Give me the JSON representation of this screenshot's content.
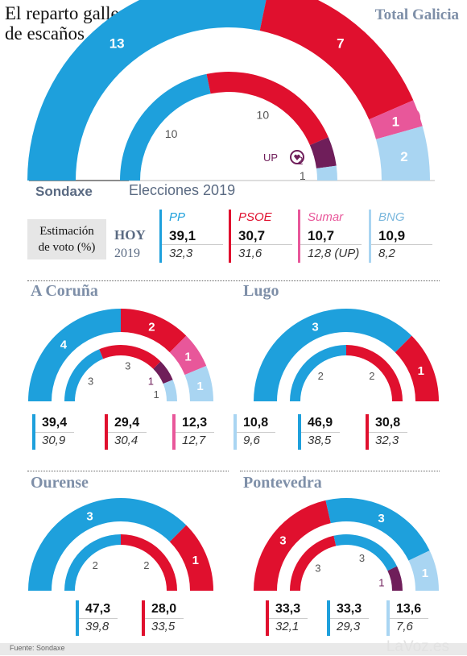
{
  "header": {
    "title_line1": "El reparto gallego",
    "title_line2": "de escaños",
    "subtitle": "Total Galicia"
  },
  "labels": {
    "sondaxe": "Sondaxe",
    "elecciones": "Elecciones 2019",
    "estimacion_l1": "Estimación",
    "estimacion_l2": "de voto (%)",
    "hoy": "HOY",
    "y2019": "2019",
    "footer": "Fuente: Sondaxe",
    "watermark": "LaVoz.es"
  },
  "colors": {
    "PP": "#1ea0dc",
    "PSOE": "#e0102e",
    "Sumar": "#e8579a",
    "BNG": "#a9d5f2",
    "UP": "#6f1e5a"
  },
  "chart_data": [
    {
      "type": "semicircle",
      "name": "Total Galicia",
      "outer_label": "Sondaxe",
      "inner_label": "Elecciones 2019",
      "outer": [
        {
          "party": "PP",
          "seats": 13
        },
        {
          "party": "PSOE",
          "seats": 7
        },
        {
          "party": "Sumar",
          "seats": 1
        },
        {
          "party": "BNG",
          "seats": 2
        }
      ],
      "inner": [
        {
          "party": "PP",
          "seats": 10
        },
        {
          "party": "PSOE",
          "seats": 10
        },
        {
          "party": "UP",
          "seats": 2
        },
        {
          "party": "BNG",
          "seats": 1
        }
      ]
    },
    {
      "type": "semicircle",
      "name": "A Coruña",
      "outer": [
        {
          "party": "PP",
          "seats": 4
        },
        {
          "party": "PSOE",
          "seats": 2
        },
        {
          "party": "Sumar",
          "seats": 1
        },
        {
          "party": "BNG",
          "seats": 1
        }
      ],
      "inner": [
        {
          "party": "PP",
          "seats": 3
        },
        {
          "party": "PSOE",
          "seats": 3
        },
        {
          "party": "UP",
          "seats": 1
        },
        {
          "party": "BNG",
          "seats": 1
        }
      ]
    },
    {
      "type": "semicircle",
      "name": "Lugo",
      "outer": [
        {
          "party": "PP",
          "seats": 3
        },
        {
          "party": "PSOE",
          "seats": 1
        }
      ],
      "inner": [
        {
          "party": "PP",
          "seats": 2
        },
        {
          "party": "PSOE",
          "seats": 2
        }
      ]
    },
    {
      "type": "semicircle",
      "name": "Ourense",
      "outer": [
        {
          "party": "PP",
          "seats": 3
        },
        {
          "party": "PSOE",
          "seats": 1
        }
      ],
      "inner": [
        {
          "party": "PP",
          "seats": 2
        },
        {
          "party": "PSOE",
          "seats": 2
        }
      ]
    },
    {
      "type": "semicircle",
      "name": "Pontevedra",
      "outer": [
        {
          "party": "PSOE",
          "seats": 3
        },
        {
          "party": "PP",
          "seats": 3
        },
        {
          "party": "BNG",
          "seats": 1
        }
      ],
      "inner": [
        {
          "party": "PSOE",
          "seats": 3
        },
        {
          "party": "PP",
          "seats": 3
        },
        {
          "party": "UP",
          "seats": 1
        }
      ]
    }
  ],
  "vote_estimate": {
    "parties": [
      {
        "name": "PP",
        "now": "39,1",
        "y2019": "32,3"
      },
      {
        "name": "PSOE",
        "now": "30,7",
        "y2019": "31,6"
      },
      {
        "name": "Sumar",
        "now": "10,7",
        "y2019": "12,8 (UP)"
      },
      {
        "name": "BNG",
        "now": "10,9",
        "y2019": "8,2"
      }
    ]
  },
  "province_votes": {
    "coruna": [
      {
        "party": "PP",
        "now": "39,4",
        "y2019": "30,9"
      },
      {
        "party": "PSOE",
        "now": "29,4",
        "y2019": "30,4"
      },
      {
        "party": "Sumar",
        "now": "12,3",
        "y2019": "12,7"
      },
      {
        "party": "BNG",
        "now": "10,8",
        "y2019": "9,6"
      }
    ],
    "lugo": [
      {
        "party": "PP",
        "now": "46,9",
        "y2019": "38,5"
      },
      {
        "party": "PSOE",
        "now": "30,8",
        "y2019": "32,3"
      }
    ],
    "ourense": [
      {
        "party": "PP",
        "now": "47,3",
        "y2019": "39,8"
      },
      {
        "party": "PSOE",
        "now": "28,0",
        "y2019": "33,5"
      }
    ],
    "pontevedra": [
      {
        "party": "PSOE",
        "now": "33,3",
        "y2019": "32,1"
      },
      {
        "party": "PP",
        "now": "33,3",
        "y2019": "29,3"
      },
      {
        "party": "BNG",
        "now": "13,6",
        "y2019": "7,6"
      }
    ]
  }
}
